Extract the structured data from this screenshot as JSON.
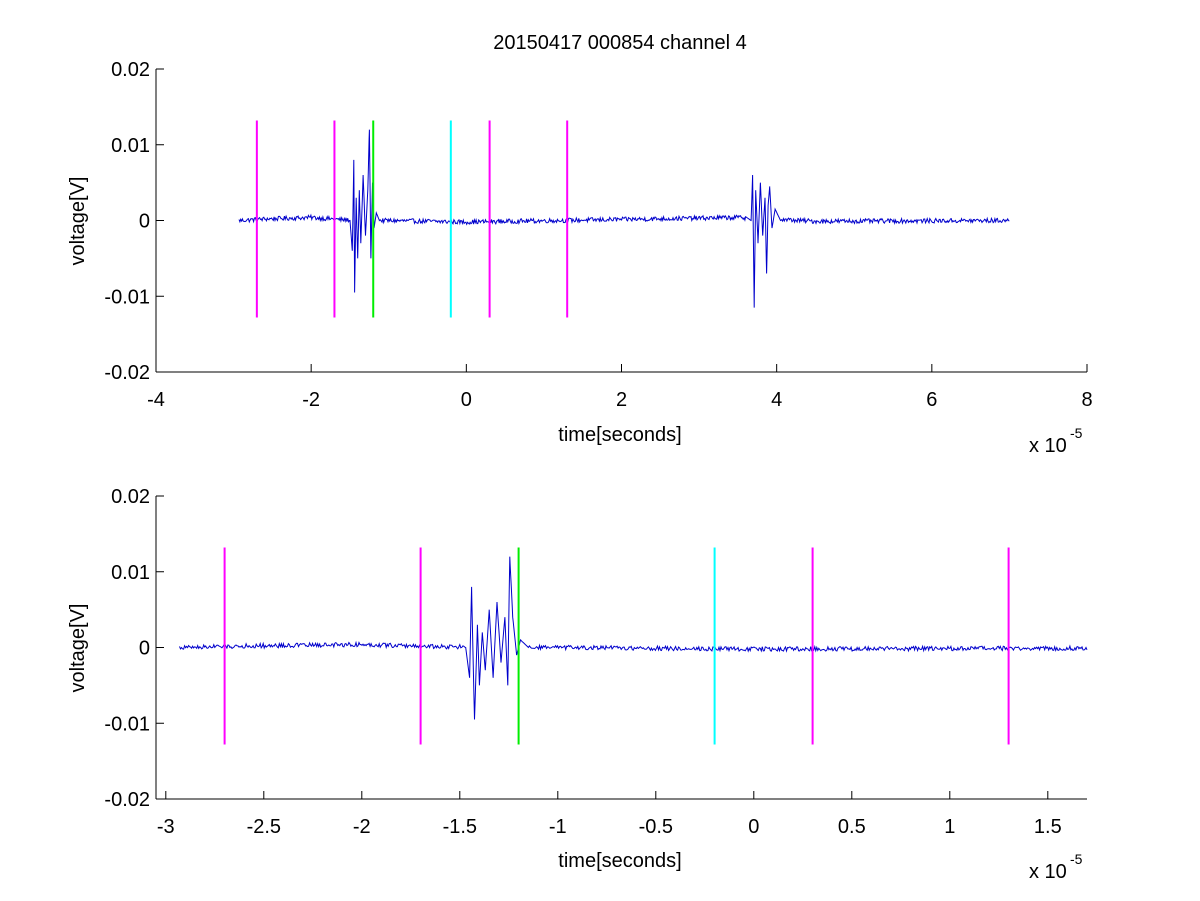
{
  "figure": {
    "title": "20150417 000854 channel 4"
  },
  "colors": {
    "signal": "#0000cc",
    "magenta": "#ff00ff",
    "green": "#00ee00",
    "cyan": "#00ffff",
    "axis": "#000000",
    "background": "#ffffff"
  },
  "chart_data": [
    {
      "type": "line",
      "title": "20150417 000854 channel 4",
      "xlabel": "time[seconds]",
      "ylabel": "voltage[V]",
      "x_multiplier": "x 10",
      "x_exponent": "-5",
      "xlim": [
        -4,
        8
      ],
      "ylim": [
        -0.02,
        0.02
      ],
      "xticks": [
        -4,
        -2,
        0,
        2,
        4,
        6,
        8
      ],
      "xtick_labels": [
        "-4",
        "-2",
        "0",
        "2",
        "4",
        "6",
        "8"
      ],
      "yticks": [
        -0.02,
        -0.01,
        0,
        0.01,
        0.02
      ],
      "ytick_labels": [
        "-0.02",
        "-0.01",
        "0",
        "0.01",
        "0.02"
      ],
      "grid": false,
      "signal": {
        "x_range": [
          -2.93,
          7.0
        ],
        "noise": 0.0003,
        "baseline": [
          [
            -2.93,
            0.0
          ],
          [
            -2.6,
            0.0002
          ],
          [
            -2.0,
            0.0004
          ],
          [
            -1.6,
            0.0001
          ],
          [
            0,
            -0.0002
          ],
          [
            3.5,
            0.0004
          ],
          [
            4.5,
            -0.0001
          ],
          [
            7.0,
            0.0
          ]
        ],
        "bursts": [
          {
            "points": [
              [
                -1.5,
                0.0
              ],
              [
                -1.47,
                -0.004
              ],
              [
                -1.45,
                0.008
              ],
              [
                -1.44,
                -0.0095
              ],
              [
                -1.42,
                0.003
              ],
              [
                -1.4,
                -0.005
              ],
              [
                -1.38,
                0.004
              ],
              [
                -1.36,
                -0.003
              ],
              [
                -1.33,
                0.006
              ],
              [
                -1.3,
                -0.002
              ],
              [
                -1.27,
                0.004
              ],
              [
                -1.25,
                0.012
              ],
              [
                -1.23,
                -0.005
              ],
              [
                -1.21,
                0.005
              ],
              [
                -1.19,
                -0.001
              ],
              [
                -1.16,
                0.001
              ],
              [
                -1.12,
                0.0
              ]
            ]
          },
          {
            "points": [
              [
                3.6,
                0.0005
              ],
              [
                3.67,
                0.0
              ],
              [
                3.69,
                0.006
              ],
              [
                3.71,
                -0.0115
              ],
              [
                3.73,
                0.004
              ],
              [
                3.76,
                -0.003
              ],
              [
                3.79,
                0.005
              ],
              [
                3.82,
                -0.002
              ],
              [
                3.85,
                0.003
              ],
              [
                3.87,
                -0.007
              ],
              [
                3.89,
                0.002
              ],
              [
                3.91,
                0.0045
              ],
              [
                3.94,
                -0.001
              ],
              [
                3.98,
                0.0015
              ],
              [
                4.05,
                0.0
              ]
            ]
          }
        ]
      },
      "vertical_markers": [
        {
          "x": -2.7,
          "color": "magenta",
          "y_range": [
            -0.0128,
            0.0132
          ]
        },
        {
          "x": -1.7,
          "color": "magenta",
          "y_range": [
            -0.0128,
            0.0132
          ]
        },
        {
          "x": -1.2,
          "color": "green",
          "y_range": [
            -0.0128,
            0.0132
          ]
        },
        {
          "x": -0.2,
          "color": "cyan",
          "y_range": [
            -0.0128,
            0.0132
          ]
        },
        {
          "x": 0.3,
          "color": "magenta",
          "y_range": [
            -0.0128,
            0.0132
          ]
        },
        {
          "x": 1.3,
          "color": "magenta",
          "y_range": [
            -0.0128,
            0.0132
          ]
        }
      ]
    },
    {
      "type": "line",
      "title": "",
      "xlabel": "time[seconds]",
      "ylabel": "voltage[V]",
      "x_multiplier": "x 10",
      "x_exponent": "-5",
      "xlim": [
        -3.05,
        1.7
      ],
      "ylim": [
        -0.02,
        0.02
      ],
      "xticks": [
        -3,
        -2.5,
        -2,
        -1.5,
        -1,
        -0.5,
        0,
        0.5,
        1,
        1.5
      ],
      "xtick_labels": [
        "-3",
        "-2.5",
        "-2",
        "-1.5",
        "-1",
        "-0.5",
        "0",
        "0.5",
        "1",
        "1.5"
      ],
      "yticks": [
        -0.02,
        -0.01,
        0,
        0.01,
        0.02
      ],
      "ytick_labels": [
        "-0.02",
        "-0.01",
        "0",
        "0.01",
        "0.02"
      ],
      "grid": false,
      "signal": {
        "x_range": [
          -2.93,
          1.7
        ],
        "noise": 0.0003,
        "baseline": [
          [
            -2.93,
            0.0
          ],
          [
            -2.6,
            0.0002
          ],
          [
            -2.0,
            0.0004
          ],
          [
            -1.6,
            0.0001
          ],
          [
            0,
            -0.0002
          ],
          [
            1.7,
            -0.0001
          ]
        ],
        "bursts": [
          {
            "points": [
              [
                -1.47,
                0.0
              ],
              [
                -1.45,
                -0.004
              ],
              [
                -1.44,
                0.008
              ],
              [
                -1.425,
                -0.0095
              ],
              [
                -1.41,
                0.003
              ],
              [
                -1.4,
                -0.005
              ],
              [
                -1.385,
                0.002
              ],
              [
                -1.37,
                -0.003
              ],
              [
                -1.35,
                0.005
              ],
              [
                -1.33,
                -0.004
              ],
              [
                -1.31,
                0.006
              ],
              [
                -1.29,
                -0.002
              ],
              [
                -1.27,
                0.004
              ],
              [
                -1.255,
                -0.005
              ],
              [
                -1.245,
                0.012
              ],
              [
                -1.23,
                0.004
              ],
              [
                -1.21,
                -0.001
              ],
              [
                -1.19,
                0.001
              ],
              [
                -1.15,
                0.0
              ]
            ]
          }
        ]
      },
      "vertical_markers": [
        {
          "x": -2.7,
          "color": "magenta",
          "y_range": [
            -0.0128,
            0.0132
          ]
        },
        {
          "x": -1.7,
          "color": "magenta",
          "y_range": [
            -0.0128,
            0.0132
          ]
        },
        {
          "x": -1.2,
          "color": "green",
          "y_range": [
            -0.0128,
            0.0132
          ]
        },
        {
          "x": -0.2,
          "color": "cyan",
          "y_range": [
            -0.0128,
            0.0132
          ]
        },
        {
          "x": 0.3,
          "color": "magenta",
          "y_range": [
            -0.0128,
            0.0132
          ]
        },
        {
          "x": 1.3,
          "color": "magenta",
          "y_range": [
            -0.0128,
            0.0132
          ]
        }
      ]
    }
  ]
}
